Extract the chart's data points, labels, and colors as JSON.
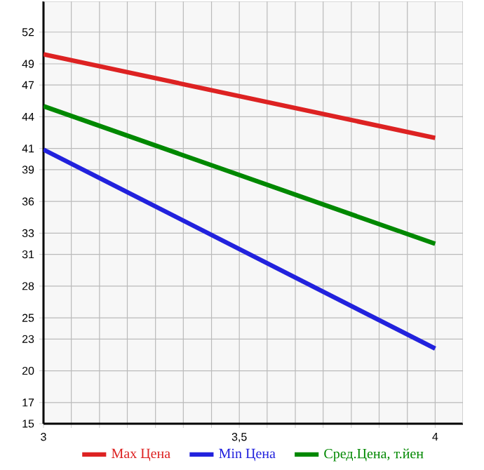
{
  "chart_data": {
    "type": "line",
    "x": [
      3,
      4
    ],
    "series": [
      {
        "name": "Max Цена",
        "color": "#dd2222",
        "values": [
          49.9,
          42.0
        ]
      },
      {
        "name": "Min Цена",
        "color": "#2222dd",
        "values": [
          40.9,
          22.1
        ]
      },
      {
        "name": "Сред.Цена, т.йен",
        "color": "#008800",
        "values": [
          45.0,
          32.0
        ]
      }
    ],
    "xlim": [
      3,
      4.071
    ],
    "xticks": [
      3,
      {
        "value": 3.071,
        "label": null
      },
      {
        "value": 3.143,
        "label": null
      },
      {
        "value": 3.214,
        "label": null
      },
      {
        "value": 3.286,
        "label": null
      },
      {
        "value": 3.357,
        "label": null
      },
      {
        "value": 3.429,
        "label": null
      },
      {
        "value": 3.5,
        "label": "3,5"
      },
      {
        "value": 3.571,
        "label": null
      },
      {
        "value": 3.643,
        "label": null
      },
      {
        "value": 3.714,
        "label": null
      },
      {
        "value": 3.786,
        "label": null
      },
      {
        "value": 3.857,
        "label": null
      },
      {
        "value": 3.929,
        "label": null
      },
      4
    ],
    "ylim": [
      15,
      54.9
    ],
    "yticks": [
      15,
      17,
      20,
      23,
      25,
      28,
      31,
      33,
      36,
      39,
      41,
      44,
      47,
      49,
      52
    ],
    "grid": true,
    "legend": "bottom",
    "marker": "none",
    "line_style": "solid"
  }
}
